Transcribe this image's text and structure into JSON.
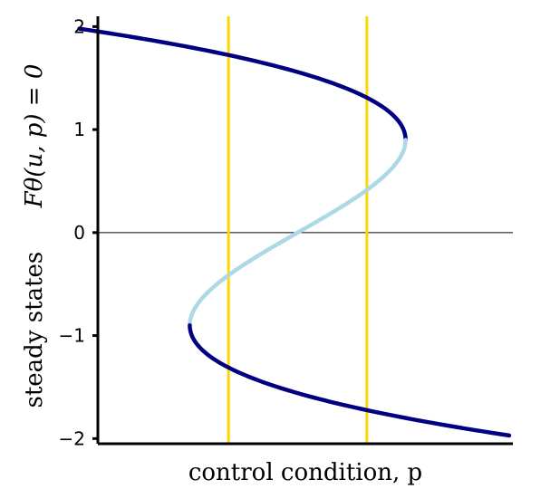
{
  "chart_data": {
    "type": "line",
    "xlabel": "control condition, p",
    "ylabel_text": "steady states",
    "ylabel_math": "Fθ(u, p) = 0",
    "ylim": [
      -2.05,
      2.1
    ],
    "xlim": [
      -2.6,
      2.8
    ],
    "y_ticks": [
      2,
      1,
      0,
      -1,
      -2
    ],
    "y_tick_labels": [
      "2",
      "1",
      "0",
      "−1",
      "−2"
    ],
    "show_x_ticks": false,
    "grid": false,
    "zero_line": true,
    "model": "p = u^3 - 3u^2/... (s-shaped fold: p as cubic function of u)",
    "curve_segments": [
      {
        "name": "stable-upper",
        "u_range": [
          0.9,
          1.98
        ],
        "color": "#000080",
        "stable": true
      },
      {
        "name": "unstable-middle",
        "u_range": [
          -0.9,
          0.9
        ],
        "color": "#add8e6",
        "stable": false
      },
      {
        "name": "stable-lower",
        "u_range": [
          -1.97,
          -0.9
        ],
        "color": "#000080",
        "stable": true
      }
    ],
    "vertical_lines": [
      {
        "name": "left",
        "p": -0.9,
        "color": "#ffd700"
      },
      {
        "name": "right",
        "p": 0.9,
        "color": "#ffd700"
      }
    ]
  },
  "colors": {
    "stable": "#000080",
    "unstable": "#add8e6",
    "vertical": "#ffd700",
    "axis": "#000000"
  }
}
